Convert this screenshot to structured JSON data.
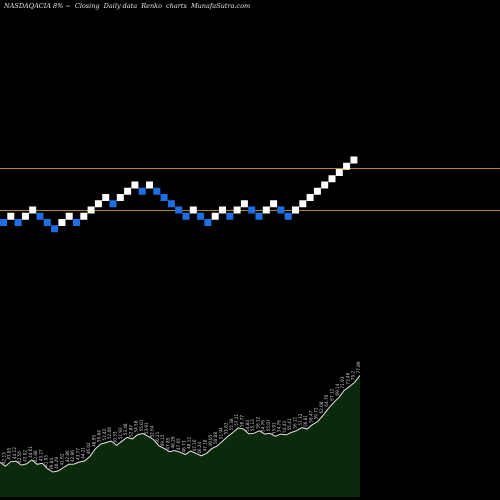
{
  "header": {
    "symbol": "NASDAQACIA",
    "change": "8%",
    "mode": "Closing",
    "frequency": "Daily data",
    "type": "Renko",
    "kind": "charts",
    "site": "MunafaSutra.com"
  },
  "colors": {
    "background": "#000000",
    "up_brick": "#ffffff",
    "down_brick": "#1e6fe6",
    "level_line": "#b8862a",
    "volume_fill": "#0b2a0b",
    "volume_line": "#e8e8e8",
    "label": "#d0d0d0"
  },
  "chart_data": [
    {
      "type": "renko",
      "levels": [
        "upper",
        "lower"
      ],
      "bricks": [
        {
          "dir": "down",
          "level": 0
        },
        {
          "dir": "up",
          "level": 1
        },
        {
          "dir": "down",
          "level": 0
        },
        {
          "dir": "up",
          "level": 1
        },
        {
          "dir": "up",
          "level": 2
        },
        {
          "dir": "down",
          "level": 1
        },
        {
          "dir": "down",
          "level": 0
        },
        {
          "dir": "down",
          "level": -1
        },
        {
          "dir": "up",
          "level": 0
        },
        {
          "dir": "up",
          "level": 1
        },
        {
          "dir": "down",
          "level": 0
        },
        {
          "dir": "up",
          "level": 1
        },
        {
          "dir": "up",
          "level": 2
        },
        {
          "dir": "up",
          "level": 3
        },
        {
          "dir": "up",
          "level": 4
        },
        {
          "dir": "down",
          "level": 3
        },
        {
          "dir": "up",
          "level": 4
        },
        {
          "dir": "up",
          "level": 5
        },
        {
          "dir": "up",
          "level": 6
        },
        {
          "dir": "down",
          "level": 5
        },
        {
          "dir": "up",
          "level": 6
        },
        {
          "dir": "down",
          "level": 5
        },
        {
          "dir": "down",
          "level": 4
        },
        {
          "dir": "down",
          "level": 3
        },
        {
          "dir": "down",
          "level": 2
        },
        {
          "dir": "down",
          "level": 1
        },
        {
          "dir": "up",
          "level": 2
        },
        {
          "dir": "down",
          "level": 1
        },
        {
          "dir": "down",
          "level": 0
        },
        {
          "dir": "up",
          "level": 1
        },
        {
          "dir": "up",
          "level": 2
        },
        {
          "dir": "down",
          "level": 1
        },
        {
          "dir": "up",
          "level": 2
        },
        {
          "dir": "up",
          "level": 3
        },
        {
          "dir": "down",
          "level": 2
        },
        {
          "dir": "down",
          "level": 1
        },
        {
          "dir": "up",
          "level": 2
        },
        {
          "dir": "up",
          "level": 3
        },
        {
          "dir": "down",
          "level": 2
        },
        {
          "dir": "down",
          "level": 1
        },
        {
          "dir": "up",
          "level": 2
        },
        {
          "dir": "up",
          "level": 3
        },
        {
          "dir": "up",
          "level": 4
        },
        {
          "dir": "up",
          "level": 5
        },
        {
          "dir": "up",
          "level": 6
        },
        {
          "dir": "up",
          "level": 7
        },
        {
          "dir": "up",
          "level": 8
        },
        {
          "dir": "up",
          "level": 9
        },
        {
          "dir": "up",
          "level": 10
        }
      ]
    },
    {
      "type": "area",
      "values": [
        43.74,
        42.13,
        43.85,
        44.12,
        42.56,
        43.02,
        44.61,
        42.88,
        43.27,
        41.05,
        39.84,
        40.29,
        41.62,
        42.86,
        42.96,
        43.77,
        44.21,
        46.02,
        48.95,
        50.84,
        51.42,
        52.06,
        50.33,
        51.92,
        53.48,
        52.87,
        54.58,
        55.01,
        53.91,
        52.64,
        50.21,
        49.15,
        47.85,
        48.29,
        47.65,
        46.73,
        48.12,
        47.16,
        46.24,
        47.18,
        49.05,
        50.08,
        51.94,
        53.82,
        55.38,
        57.21,
        56.77,
        54.84,
        55.13,
        56.12,
        54.76,
        55.07,
        53.91,
        54.76,
        54.43,
        55.41,
        56.11,
        57.32,
        56.81,
        58.47,
        59.72,
        62.08,
        64.76,
        67.12,
        69.14,
        71.93,
        73.46,
        75.2,
        77.89
      ],
      "labels": [
        "43.74",
        "42.13",
        "43.85",
        "44.12",
        "42.56",
        "43.02",
        "44.61",
        "42.88",
        "43.27",
        "41.05",
        "39.84",
        "40.29",
        "41.62",
        "42.86",
        "42.96",
        "43.77",
        "44.21",
        "46.02",
        "48.95",
        "50.84",
        "51.42",
        "52.06",
        "50.33",
        "51.92",
        "53.48",
        "52.87",
        "54.58",
        "55.01",
        "53.91",
        "52.64",
        "50.21",
        "49.15",
        "47.85",
        "48.29",
        "47.65",
        "46.73",
        "48.12",
        "47.16",
        "46.24",
        "47.18",
        "49.05",
        "50.08",
        "51.94",
        "53.82",
        "55.38",
        "57.21",
        "56.77",
        "54.84",
        "55.13",
        "56.12",
        "54.76",
        "55.07",
        "53.91",
        "54.76",
        "54.43",
        "55.41",
        "56.11",
        "57.32",
        "56.81",
        "58.47",
        "59.72",
        "62.08",
        "64.76",
        "67.12",
        "69.14",
        "71.93",
        "73.46",
        "75.2",
        "77.89"
      ]
    }
  ]
}
